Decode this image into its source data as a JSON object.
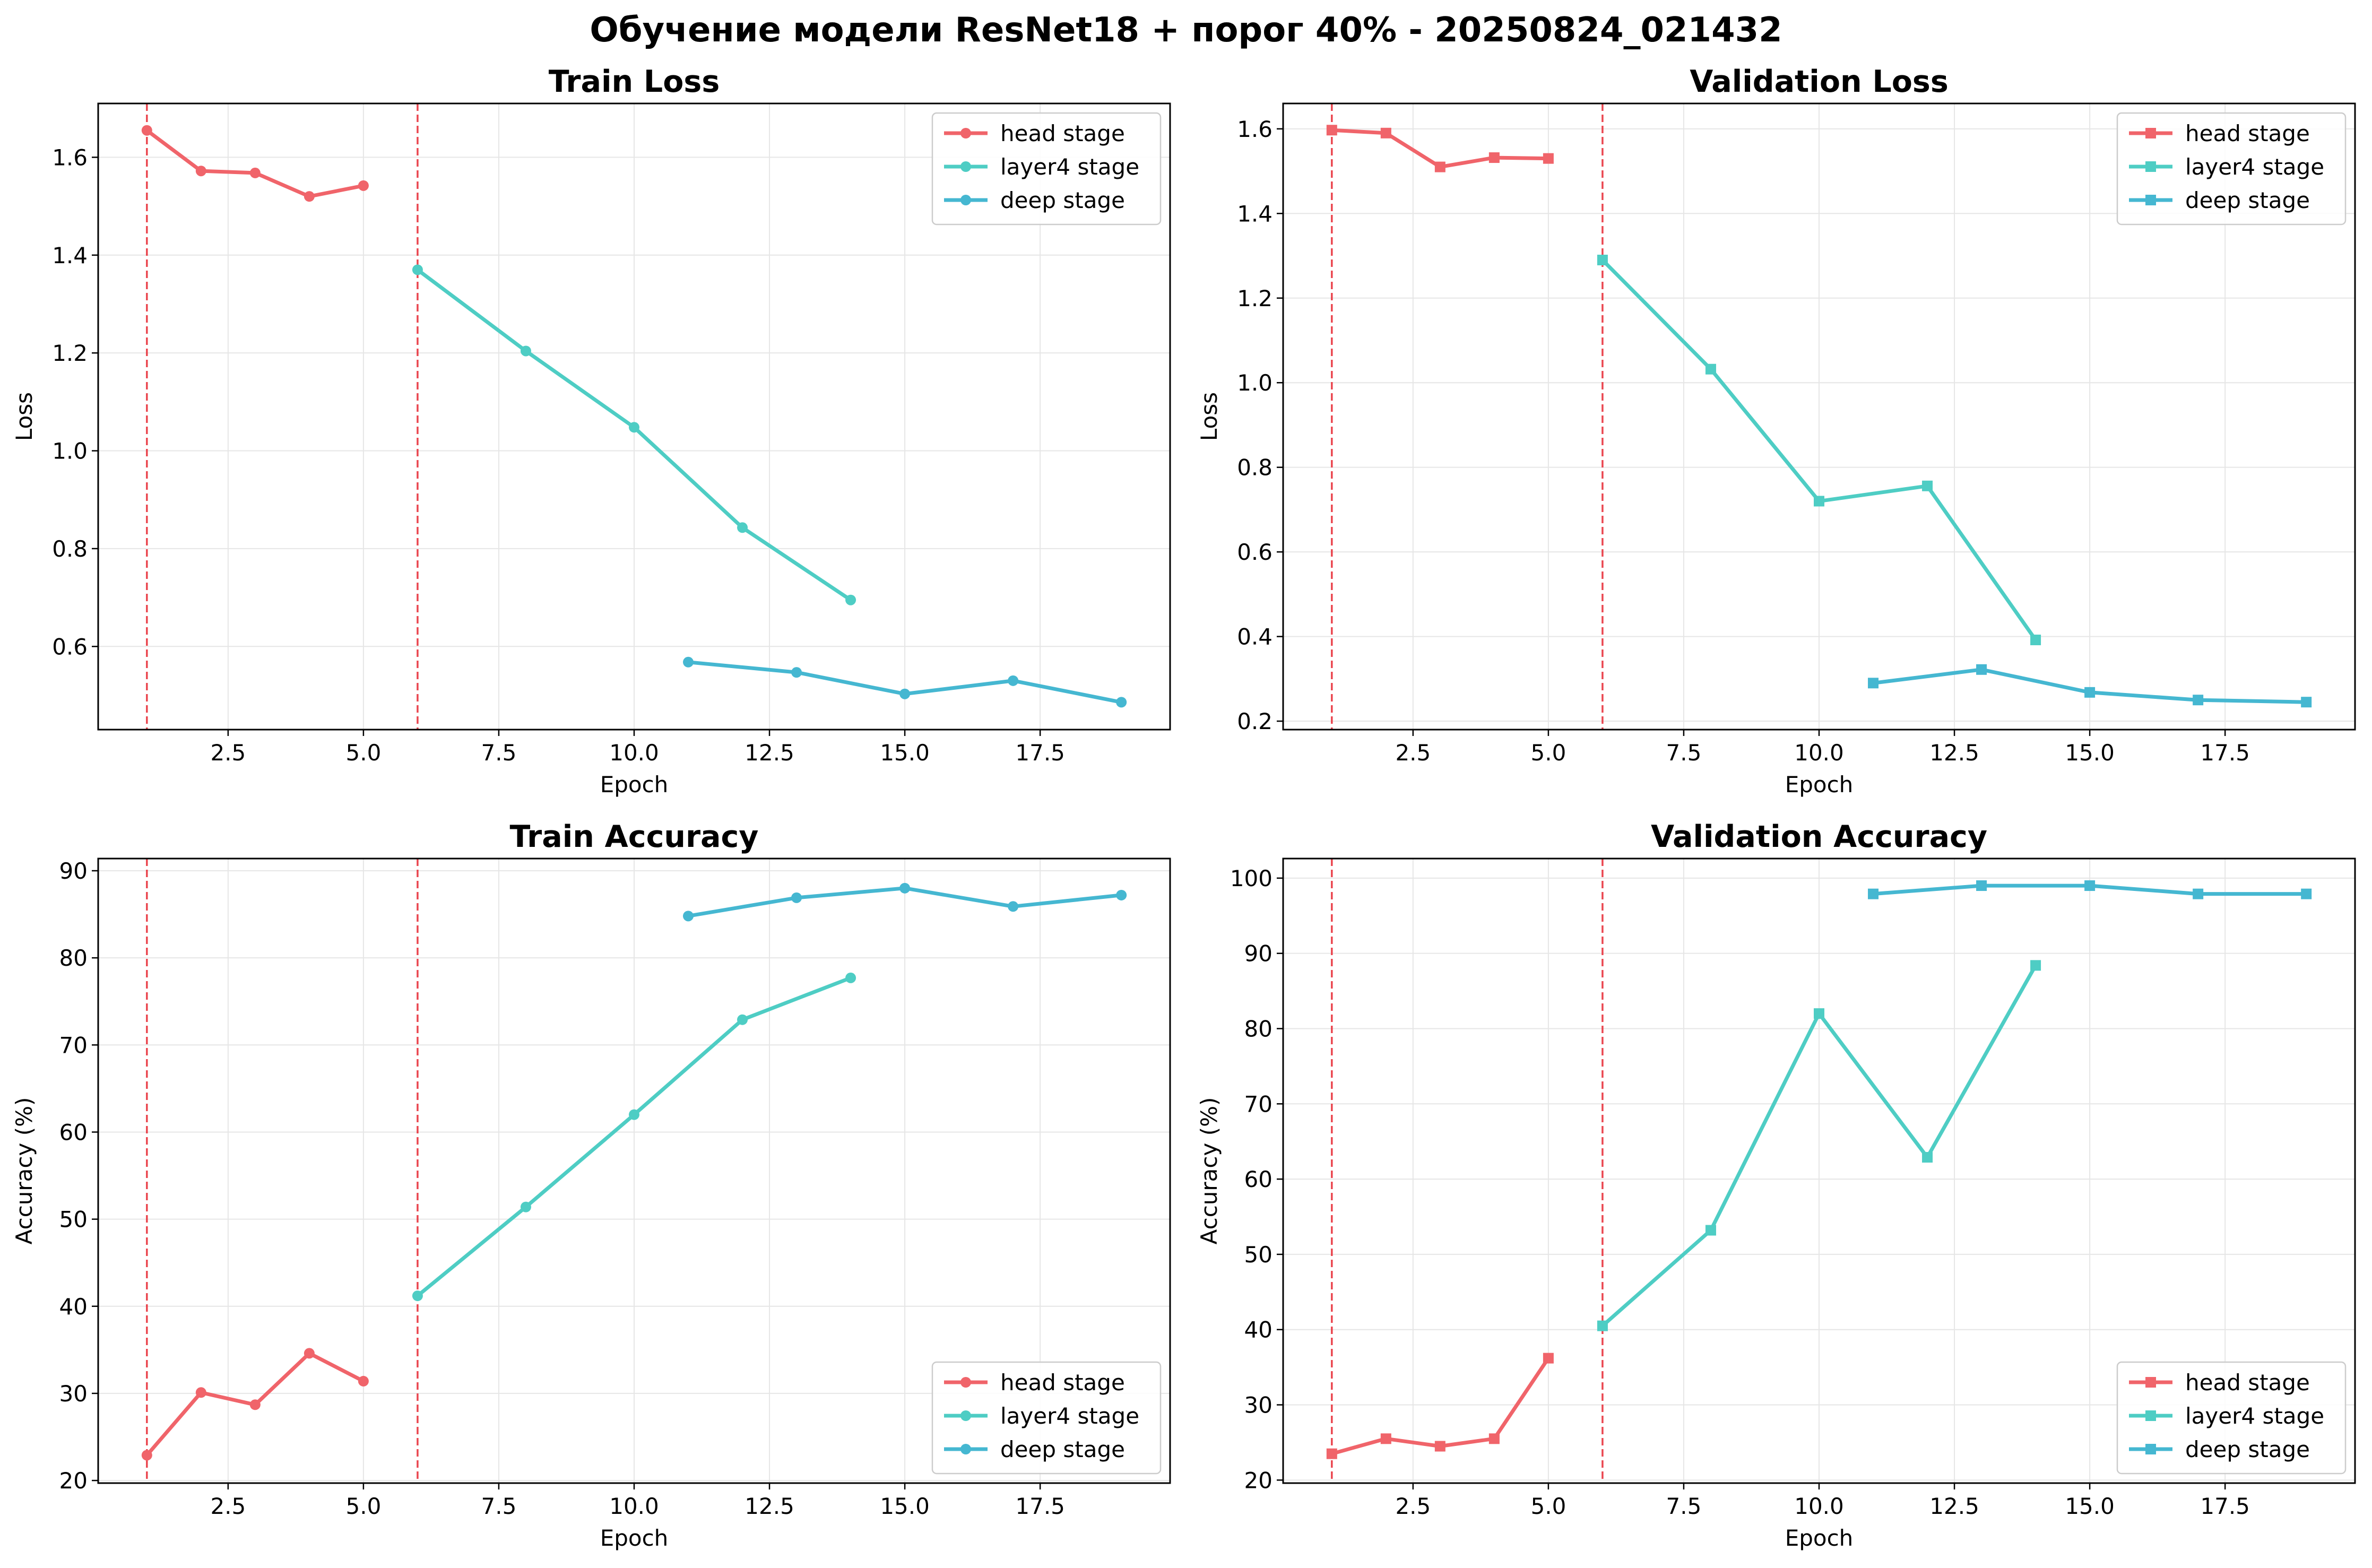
{
  "figure": {
    "title": "Обучение модели ResNet18 + порог 40% - 20250824_021432"
  },
  "colors": {
    "head": "#f0646a",
    "layer4": "#4ecdc4",
    "deep": "#45b7d1",
    "vline": "#e8323c",
    "grid": "#e6e6e6"
  },
  "vlines_x": [
    1,
    6
  ],
  "chart_data": [
    {
      "type": "line",
      "title": "Train Loss",
      "xlabel": "Epoch",
      "ylabel": "Loss",
      "marker": "circle",
      "xlim": [
        0.1,
        19.9
      ],
      "ylim": [
        0.43,
        1.71
      ],
      "xticks": [
        2.5,
        5.0,
        7.5,
        10.0,
        12.5,
        15.0,
        17.5
      ],
      "xtick_labels": [
        "2.5",
        "5.0",
        "7.5",
        "10.0",
        "12.5",
        "15.0",
        "17.5"
      ],
      "yticks": [
        0.6,
        0.8,
        1.0,
        1.2,
        1.4,
        1.6
      ],
      "ytick_labels": [
        "0.6",
        "0.8",
        "1.0",
        "1.2",
        "1.4",
        "1.6"
      ],
      "legend": "upper right",
      "series": [
        {
          "name": "head stage",
          "key": "head",
          "x": [
            1,
            2,
            3,
            4,
            5
          ],
          "y": [
            1.655,
            1.572,
            1.568,
            1.52,
            1.542
          ]
        },
        {
          "name": "layer4 stage",
          "key": "layer4",
          "x": [
            6,
            8,
            10,
            12,
            14
          ],
          "y": [
            1.37,
            1.204,
            1.048,
            0.843,
            0.695
          ]
        },
        {
          "name": "deep stage",
          "key": "deep",
          "x": [
            11,
            13,
            15,
            17,
            19
          ],
          "y": [
            0.568,
            0.547,
            0.503,
            0.53,
            0.486
          ]
        }
      ]
    },
    {
      "type": "line",
      "title": "Validation Loss",
      "xlabel": "Epoch",
      "ylabel": "Loss",
      "marker": "square",
      "xlim": [
        0.1,
        19.9
      ],
      "ylim": [
        0.18,
        1.66
      ],
      "xticks": [
        2.5,
        5.0,
        7.5,
        10.0,
        12.5,
        15.0,
        17.5
      ],
      "xtick_labels": [
        "2.5",
        "5.0",
        "7.5",
        "10.0",
        "12.5",
        "15.0",
        "17.5"
      ],
      "yticks": [
        0.2,
        0.4,
        0.6,
        0.8,
        1.0,
        1.2,
        1.4,
        1.6
      ],
      "ytick_labels": [
        "0.2",
        "0.4",
        "0.6",
        "0.8",
        "1.0",
        "1.2",
        "1.4",
        "1.6"
      ],
      "legend": "upper right",
      "series": [
        {
          "name": "head stage",
          "key": "head",
          "x": [
            1,
            2,
            3,
            4,
            5
          ],
          "y": [
            1.597,
            1.59,
            1.51,
            1.532,
            1.53
          ]
        },
        {
          "name": "layer4 stage",
          "key": "layer4",
          "x": [
            6,
            8,
            10,
            12,
            14
          ],
          "y": [
            1.29,
            1.032,
            0.72,
            0.756,
            0.392
          ]
        },
        {
          "name": "deep stage",
          "key": "deep",
          "x": [
            11,
            13,
            15,
            17,
            19
          ],
          "y": [
            0.29,
            0.322,
            0.268,
            0.25,
            0.245
          ]
        }
      ]
    },
    {
      "type": "line",
      "title": "Train Accuracy",
      "xlabel": "Epoch",
      "ylabel": "Accuracy (%)",
      "marker": "circle",
      "xlim": [
        0.1,
        19.9
      ],
      "ylim": [
        19.7,
        91.4
      ],
      "xticks": [
        2.5,
        5.0,
        7.5,
        10.0,
        12.5,
        15.0,
        17.5
      ],
      "xtick_labels": [
        "2.5",
        "5.0",
        "7.5",
        "10.0",
        "12.5",
        "15.0",
        "17.5"
      ],
      "yticks": [
        20,
        30,
        40,
        50,
        60,
        70,
        80,
        90
      ],
      "ytick_labels": [
        "20",
        "30",
        "40",
        "50",
        "60",
        "70",
        "80",
        "90"
      ],
      "legend": "lower right",
      "series": [
        {
          "name": "head stage",
          "key": "head",
          "x": [
            1,
            2,
            3,
            4,
            5
          ],
          "y": [
            22.9,
            30.1,
            28.7,
            34.6,
            31.4
          ]
        },
        {
          "name": "layer4 stage",
          "key": "layer4",
          "x": [
            6,
            8,
            10,
            12,
            14
          ],
          "y": [
            41.2,
            51.4,
            62.0,
            72.9,
            77.7
          ]
        },
        {
          "name": "deep stage",
          "key": "deep",
          "x": [
            11,
            13,
            15,
            17,
            19
          ],
          "y": [
            84.8,
            86.9,
            88.0,
            85.9,
            87.2
          ]
        }
      ]
    },
    {
      "type": "line",
      "title": "Validation Accuracy",
      "xlabel": "Epoch",
      "ylabel": "Accuracy (%)",
      "marker": "square",
      "xlim": [
        0.1,
        19.9
      ],
      "ylim": [
        19.6,
        102.6
      ],
      "xticks": [
        2.5,
        5.0,
        7.5,
        10.0,
        12.5,
        15.0,
        17.5
      ],
      "xtick_labels": [
        "2.5",
        "5.0",
        "7.5",
        "10.0",
        "12.5",
        "15.0",
        "17.5"
      ],
      "yticks": [
        20,
        30,
        40,
        50,
        60,
        70,
        80,
        90,
        100
      ],
      "ytick_labels": [
        "20",
        "30",
        "40",
        "50",
        "60",
        "70",
        "80",
        "90",
        "100"
      ],
      "legend": "lower right",
      "series": [
        {
          "name": "head stage",
          "key": "head",
          "x": [
            1,
            2,
            3,
            4,
            5
          ],
          "y": [
            23.5,
            25.5,
            24.5,
            25.5,
            36.2
          ]
        },
        {
          "name": "layer4 stage",
          "key": "layer4",
          "x": [
            6,
            8,
            10,
            12,
            14
          ],
          "y": [
            40.5,
            53.2,
            82.0,
            62.9,
            88.4
          ]
        },
        {
          "name": "deep stage",
          "key": "deep",
          "x": [
            11,
            13,
            15,
            17,
            19
          ],
          "y": [
            97.9,
            99.0,
            99.0,
            97.9,
            97.9
          ]
        }
      ]
    }
  ]
}
